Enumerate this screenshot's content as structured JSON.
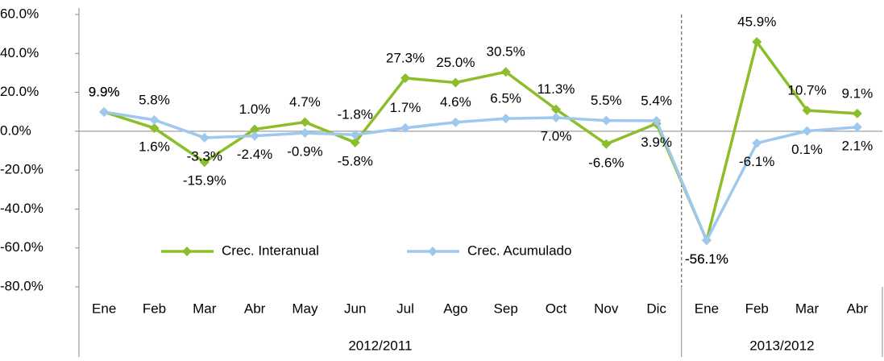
{
  "chart_data": {
    "type": "line",
    "categories": [
      "Ene",
      "Feb",
      "Mar",
      "Abr",
      "May",
      "Jun",
      "Jul",
      "Ago",
      "Sep",
      "Oct",
      "Nov",
      "Dic",
      "Ene",
      "Feb",
      "Mar",
      "Abr"
    ],
    "groups": [
      {
        "label": "2012/2011",
        "span": 12
      },
      {
        "label": "2013/2012",
        "span": 4
      }
    ],
    "series": [
      {
        "name": "Crec. Interanual",
        "color": "#8cbd2a",
        "values": [
          9.9,
          1.6,
          -15.9,
          1.0,
          4.7,
          -5.8,
          27.3,
          25.0,
          30.5,
          11.3,
          -6.6,
          3.9,
          -56.1,
          45.9,
          10.7,
          9.1
        ],
        "value_labels": [
          "9.9%",
          "1.6%",
          "-15.9%",
          "1.0%",
          "4.7%",
          "-5.8%",
          "27.3%",
          "25.0%",
          "30.5%",
          "11.3%",
          "-6.6%",
          "3.9%",
          "-56.1%",
          "45.9%",
          "10.7%",
          "9.1%"
        ]
      },
      {
        "name": "Crec. Acumulado",
        "color": "#9fc8ee",
        "values": [
          9.9,
          5.8,
          -3.3,
          -2.4,
          -0.9,
          -1.8,
          1.7,
          4.6,
          6.5,
          7.0,
          5.5,
          5.4,
          -56.1,
          -6.1,
          0.1,
          2.1
        ],
        "value_labels": [
          "9.9%",
          "5.8%",
          "-3.3%",
          "-2.4%",
          "-0.9%",
          "-1.8%",
          "1.7%",
          "4.6%",
          "6.5%",
          "7.0%",
          "5.5%",
          "5.4%",
          "-56.1%",
          "-6.1%",
          "0.1%",
          "2.1%"
        ]
      }
    ],
    "ylim": [
      -80,
      60
    ],
    "yticks": [
      {
        "value": -80,
        "label": "-80.0%"
      },
      {
        "value": -60,
        "label": "-60.0%"
      },
      {
        "value": -40,
        "label": "-40.0%"
      },
      {
        "value": -20,
        "label": "-20.0%"
      },
      {
        "value": 0,
        "label": "0.0%"
      },
      {
        "value": 20,
        "label": "20.0%"
      },
      {
        "value": 40,
        "label": "40.0%"
      },
      {
        "value": 60,
        "label": "60.0%"
      }
    ],
    "legend": "lower-left"
  }
}
